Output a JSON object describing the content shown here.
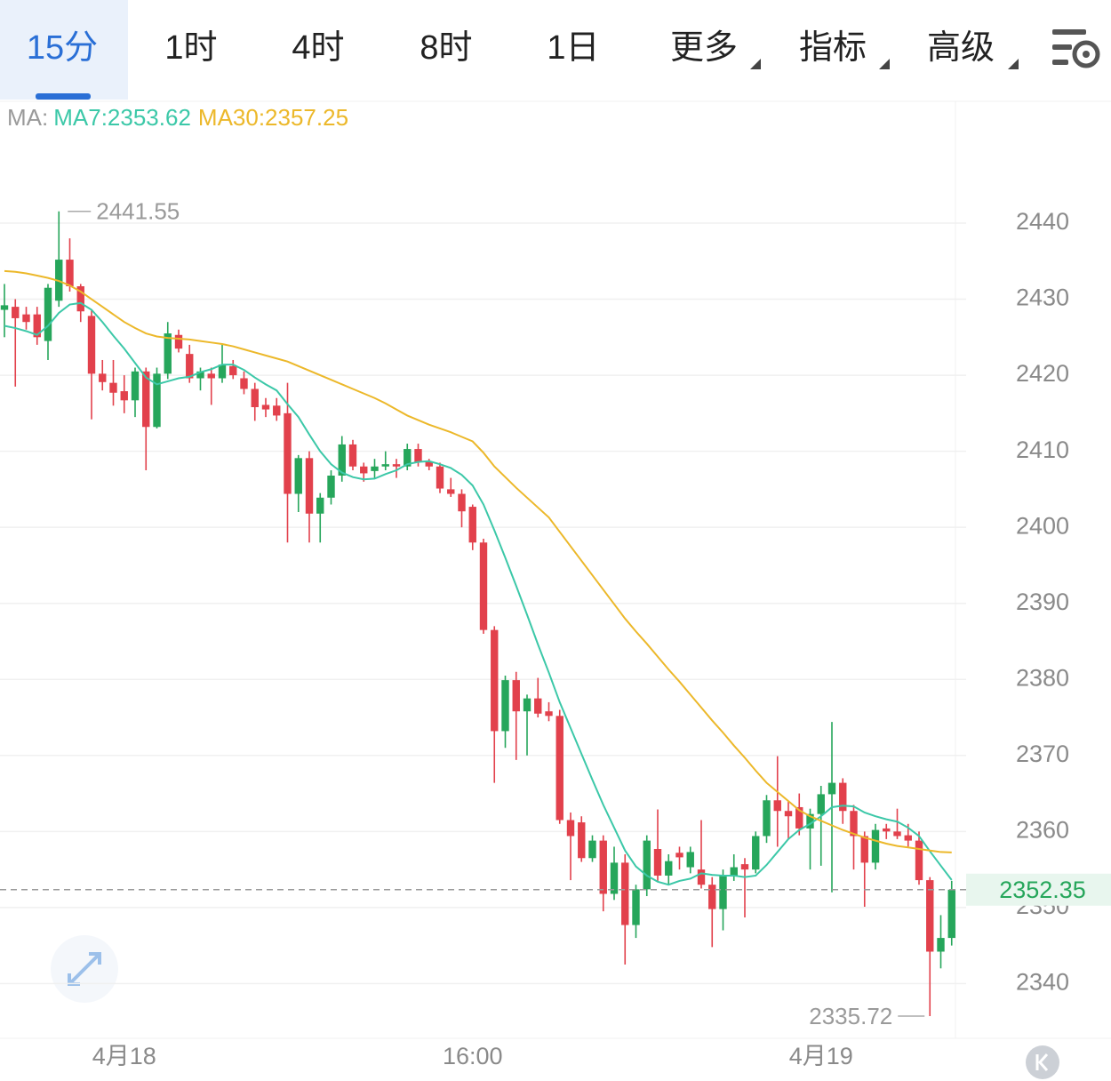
{
  "tabs": [
    "15分",
    "1时",
    "4时",
    "8时",
    "1日",
    "更多",
    "指标",
    "高级"
  ],
  "chart_data": {
    "type": "candlestick",
    "legend_prefix": "MA:",
    "categories": [
      null,
      null,
      null,
      null,
      null,
      null,
      null,
      null,
      null,
      null,
      null,
      "4月18",
      null,
      null,
      null,
      null,
      null,
      null,
      null,
      null,
      null,
      null,
      null,
      null,
      null,
      null,
      null,
      null,
      null,
      null,
      null,
      null,
      null,
      null,
      null,
      null,
      null,
      null,
      null,
      null,
      null,
      null,
      null,
      "16:00",
      null,
      null,
      null,
      null,
      null,
      null,
      null,
      null,
      null,
      null,
      null,
      null,
      null,
      null,
      null,
      null,
      null,
      null,
      null,
      null,
      null,
      null,
      null,
      null,
      null,
      null,
      null,
      null,
      null,
      null,
      null,
      "4月19",
      null,
      null,
      null,
      null,
      null,
      null,
      null,
      null,
      null,
      null,
      null,
      null
    ],
    "open": [
      2428.6,
      2429,
      2428,
      2428,
      2424.5,
      2429.8,
      2435.2,
      2431.7,
      2427.8,
      2420.2,
      2419,
      2417.9,
      2416.7,
      2420.5,
      2413.2,
      2420.2,
      2425.3,
      2422.8,
      2419.6,
      2420.2,
      2419.6,
      2421.2,
      2419.6,
      2418.2,
      2416.1,
      2416,
      2415,
      2404.4,
      2409.1,
      2401.8,
      2403.9,
      2406.8,
      2410.9,
      2408,
      2407.4,
      2408,
      2408.3,
      2408,
      2410.3,
      2408.6,
      2408,
      2405,
      2404.4,
      2402.7,
      2398,
      2386.5,
      2373.2,
      2379.9,
      2375.8,
      2377.5,
      2375.8,
      2375.2,
      2361.5,
      2361.2,
      2356.5,
      2358.8,
      2351.8,
      2355.9,
      2347.7,
      2352.4,
      2357.7,
      2354.2,
      2357.2,
      2355.3,
      2355,
      2353,
      2349.8,
      2354.2,
      2355.7,
      2355,
      2359.4,
      2364.1,
      2362.7,
      2363.2,
      2360.4,
      2362.3,
      2364.9,
      2366.4,
      2362.7,
      2359.4,
      2355.9,
      2360.4,
      2360,
      2359.5,
      2358.8,
      2353.6,
      2344.2,
      2346
    ],
    "high": [
      2432,
      2430,
      2429,
      2429,
      2432,
      2441.55,
      2438,
      2432,
      2428.5,
      2422,
      2422,
      2420,
      2421,
      2421,
      2421,
      2427,
      2426,
      2424,
      2421,
      2421,
      2424,
      2422,
      2420.5,
      2419,
      2417,
      2417,
      2419,
      2409.5,
      2410,
      2404.5,
      2407.5,
      2412,
      2411.5,
      2408.5,
      2409,
      2410,
      2409,
      2411,
      2411,
      2409,
      2408.5,
      2406.5,
      2405,
      2403,
      2398.5,
      2387,
      2380.5,
      2381,
      2378,
      2380.2,
      2377,
      2376,
      2362.5,
      2362,
      2359.5,
      2359.5,
      2358,
      2357,
      2353,
      2359.5,
      2362.9,
      2357,
      2358,
      2358,
      2361.5,
      2354,
      2355,
      2357,
      2356.5,
      2360,
      2364.8,
      2369.9,
      2364,
      2365,
      2363,
      2366,
      2374.4,
      2367,
      2363.5,
      2360,
      2361,
      2361,
      2363,
      2361,
      2360,
      2354,
      2349,
      2353.5
    ],
    "low": [
      2425,
      2418.5,
      2426,
      2424,
      2422,
      2429,
      2431,
      2427,
      2414.2,
      2418,
      2416,
      2415,
      2414.5,
      2407.5,
      2413,
      2419.5,
      2423,
      2419,
      2418,
      2416.1,
      2419,
      2419.5,
      2417.5,
      2414,
      2414.5,
      2414,
      2398,
      2402,
      2398,
      2398,
      2403,
      2406,
      2407.5,
      2406,
      2406.5,
      2407.5,
      2406.5,
      2407.5,
      2408,
      2407.5,
      2404.5,
      2404,
      2400,
      2397,
      2386,
      2366.4,
      2371,
      2369.4,
      2370,
      2375,
      2374.5,
      2361,
      2353.6,
      2356,
      2356,
      2349.5,
      2351,
      2342.5,
      2346,
      2351.5,
      2353.5,
      2353,
      2355,
      2354.5,
      2352.5,
      2344.8,
      2347,
      2353.5,
      2348.7,
      2354.5,
      2358.5,
      2358,
      2359,
      2359.5,
      2355,
      2355.5,
      2352,
      2361,
      2355,
      2350.1,
      2355,
      2359,
      2359,
      2358,
      2353,
      2335.72,
      2342,
      2345
    ],
    "close": [
      2429.2,
      2427.5,
      2427,
      2425,
      2431.5,
      2435.2,
      2431.7,
      2428.4,
      2420.2,
      2419.1,
      2417.7,
      2416.7,
      2420.5,
      2413.2,
      2420.2,
      2425.5,
      2423.5,
      2419.6,
      2420.5,
      2419.6,
      2421.4,
      2420,
      2418.2,
      2415.8,
      2415.5,
      2414.7,
      2404.4,
      2409.1,
      2401.8,
      2403.9,
      2406.8,
      2410.9,
      2408,
      2407.1,
      2408,
      2408.3,
      2408,
      2410.3,
      2408.6,
      2408,
      2405.1,
      2404.4,
      2402.1,
      2398,
      2386.5,
      2373.2,
      2379.9,
      2375.8,
      2377.5,
      2375.5,
      2375.2,
      2361.5,
      2359.4,
      2356.5,
      2358.8,
      2351.8,
      2355.9,
      2347.7,
      2352.4,
      2358.8,
      2354.2,
      2356.1,
      2356.6,
      2357.3,
      2353,
      2349.8,
      2354.2,
      2355.3,
      2355,
      2359.4,
      2364.1,
      2362.7,
      2362,
      2360.4,
      2362.3,
      2364.9,
      2366.4,
      2362.7,
      2359.4,
      2355.9,
      2360.2,
      2360,
      2359.4,
      2358.8,
      2353.6,
      2344.2,
      2346,
      2352.35
    ],
    "up_color": "#26a65b",
    "down_color": "#e2414c",
    "series": [
      {
        "name": "MA7:2353.62",
        "color": "#3cc8a8",
        "values": [
          2426.5,
          2426.2,
          2425.8,
          2425.3,
          2426.5,
          2428.2,
          2429.3,
          2429.5,
          2428.6,
          2427,
          2425.2,
          2423.5,
          2421.6,
          2419.7,
          2418.8,
          2419.2,
          2419.6,
          2419.8,
          2420.4,
          2420.8,
          2421.4,
          2421.4,
          2420.7,
          2419.7,
          2418.8,
          2418,
          2416.2,
          2414.5,
          2412.2,
          2410,
          2408.3,
          2407.2,
          2406.6,
          2406.3,
          2406.4,
          2407,
          2407.5,
          2408.3,
          2408.6,
          2408.7,
          2408.3,
          2407.8,
          2406.9,
          2405.5,
          2403,
          2399.6,
          2396,
          2392.3,
          2388.5,
          2384.6,
          2380.9,
          2377,
          2373.6,
          2370.2,
          2366.8,
          2363.5,
          2360.5,
          2357.5,
          2355.4,
          2354.2,
          2353.4,
          2353,
          2353.5,
          2353.8,
          2354.5,
          2354.3,
          2354.2,
          2354.2,
          2354,
          2354.2,
          2355.6,
          2357.3,
          2359,
          2360.2,
          2361,
          2362,
          2363.2,
          2363.4,
          2363.3,
          2362.5,
          2362,
          2361.6,
          2361.3,
          2360.5,
          2359.4,
          2357.4,
          2355.5,
          2353.62
        ]
      },
      {
        "name": "MA30:2357.25",
        "color": "#ecb82a",
        "values": [
          2433.7,
          2433.6,
          2433.4,
          2433.1,
          2432.8,
          2432.4,
          2431.8,
          2431,
          2430,
          2429,
          2428,
          2427,
          2426.2,
          2425.5,
          2425.1,
          2424.9,
          2424.8,
          2424.7,
          2424.5,
          2424.3,
          2424.1,
          2423.8,
          2423.4,
          2423,
          2422.6,
          2422.2,
          2421.8,
          2421.2,
          2420.6,
          2420,
          2419.4,
          2418.8,
          2418.2,
          2417.6,
          2417,
          2416.3,
          2415.5,
          2414.7,
          2414.1,
          2413.5,
          2413,
          2412.5,
          2411.9,
          2411.3,
          2409.8,
          2408,
          2406.6,
          2405.2,
          2403.9,
          2402.6,
          2401.3,
          2399.4,
          2397.5,
          2395.6,
          2393.7,
          2391.8,
          2389.9,
          2388,
          2386.3,
          2384.7,
          2383,
          2381.3,
          2379.7,
          2378,
          2376.3,
          2374.6,
          2373,
          2371.3,
          2369.7,
          2368,
          2366.4,
          2365.2,
          2364,
          2362.8,
          2362,
          2361.4,
          2360.8,
          2360.2,
          2359.7,
          2359.2,
          2358.8,
          2358.4,
          2358.1,
          2357.9,
          2357.7,
          2357.5,
          2357.3,
          2357.25
        ]
      }
    ],
    "ylim": [
      2332.8,
      2455.9
    ],
    "yticks": [
      2340,
      2350,
      2360,
      2370,
      2380,
      2390,
      2400,
      2410,
      2420,
      2430,
      2440
    ],
    "grid": true
  }
}
